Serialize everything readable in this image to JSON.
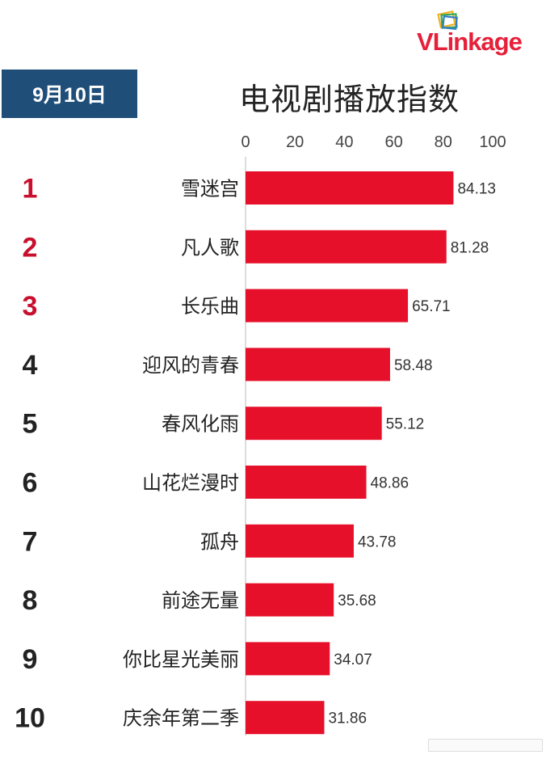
{
  "date_label": "9月10日",
  "title": "电视剧播放指数",
  "logo": {
    "text_v": "V",
    "text_rest": "Linkage",
    "icon": "vlinkage-stacked-squares-icon"
  },
  "colors": {
    "bar": "#e6102a",
    "rank_top": "#c8102e",
    "rank_other": "#222222",
    "date_bg": "#1f4e79"
  },
  "chart_data": {
    "type": "bar",
    "orientation": "horizontal",
    "title": "电视剧播放指数",
    "categories": [
      "雪迷宫",
      "凡人歌",
      "长乐曲",
      "迎风的青春",
      "春风化雨",
      "山花烂漫时",
      "孤舟",
      "前途无量",
      "你比星光美丽",
      "庆余年第二季"
    ],
    "ranks": [
      "1",
      "2",
      "3",
      "4",
      "5",
      "6",
      "7",
      "8",
      "9",
      "10"
    ],
    "values": [
      84.13,
      81.28,
      65.71,
      58.48,
      55.12,
      48.86,
      43.78,
      35.68,
      34.07,
      31.86
    ],
    "value_labels": [
      "84.13",
      "81.28",
      "65.71",
      "58.48",
      "55.12",
      "48.86",
      "43.78",
      "35.68",
      "34.07",
      "31.86"
    ],
    "xticks": [
      "0",
      "20",
      "40",
      "60",
      "80",
      "100"
    ],
    "xlim": [
      0,
      100
    ],
    "grid": false,
    "legend": "none"
  }
}
